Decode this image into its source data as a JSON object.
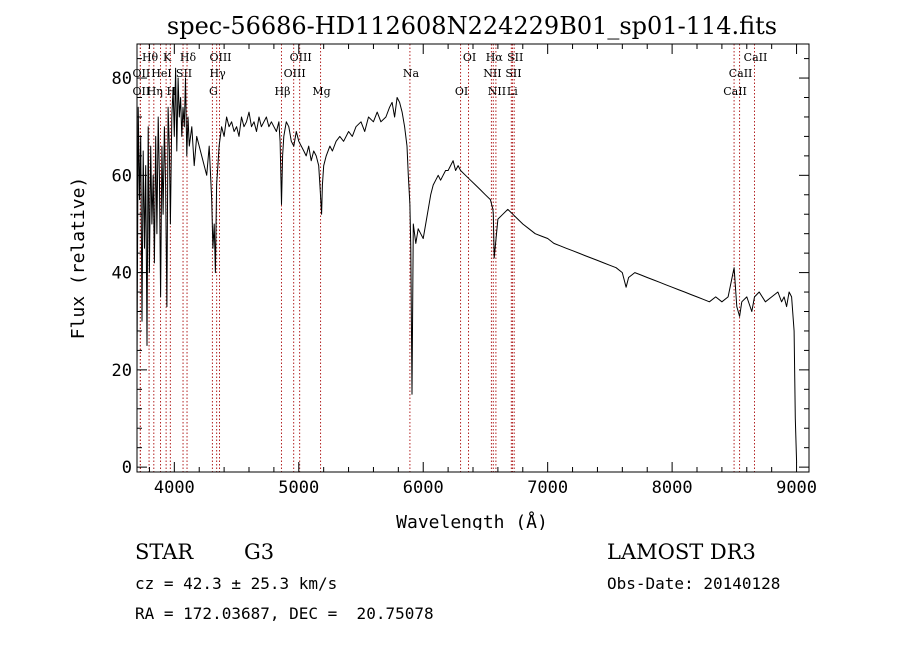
{
  "chart_data": {
    "type": "line",
    "title": "spec-56686-HD112608N224229B01_sp01-114.fits",
    "xlabel": "Wavelength (Å)",
    "ylabel": "Flux (relative)",
    "xlim": [
      3700,
      9100
    ],
    "ylim": [
      -1,
      87
    ],
    "x_ticks": [
      4000,
      5000,
      6000,
      7000,
      8000,
      9000
    ],
    "y_ticks": [
      0,
      20,
      40,
      60,
      80
    ],
    "grid": false,
    "series": [
      {
        "x": [
          3700,
          3710,
          3720,
          3730,
          3740,
          3750,
          3760,
          3770,
          3780,
          3790,
          3800,
          3810,
          3820,
          3830,
          3840,
          3850,
          3860,
          3870,
          3880,
          3890,
          3900,
          3910,
          3920,
          3930,
          3940,
          3950,
          3960,
          3968,
          3980,
          3990,
          4000,
          4010,
          4020,
          4030,
          4040,
          4050,
          4060,
          4070,
          4080,
          4090,
          4100,
          4110,
          4120,
          4140,
          4160,
          4180,
          4200,
          4220,
          4240,
          4260,
          4280,
          4300,
          4310,
          4320,
          4330,
          4340,
          4350,
          4360,
          4380,
          4400,
          4420,
          4440,
          4460,
          4480,
          4500,
          4520,
          4540,
          4560,
          4580,
          4600,
          4620,
          4640,
          4660,
          4680,
          4700,
          4720,
          4740,
          4760,
          4780,
          4800,
          4820,
          4840,
          4850,
          4861,
          4870,
          4880,
          4900,
          4920,
          4940,
          4960,
          4980,
          5000,
          5020,
          5040,
          5060,
          5080,
          5100,
          5120,
          5140,
          5160,
          5170,
          5183,
          5190,
          5200,
          5220,
          5250,
          5270,
          5300,
          5330,
          5360,
          5400,
          5430,
          5460,
          5500,
          5530,
          5560,
          5600,
          5630,
          5660,
          5700,
          5730,
          5750,
          5770,
          5790,
          5810,
          5830,
          5850,
          5870,
          5880,
          5893,
          5900,
          5910,
          5920,
          5940,
          5960,
          5980,
          6000,
          6020,
          6040,
          6060,
          6080,
          6100,
          6120,
          6140,
          6160,
          6180,
          6200,
          6220,
          6240,
          6260,
          6280,
          6300,
          6340,
          6380,
          6420,
          6460,
          6500,
          6540,
          6560,
          6563,
          6570,
          6600,
          6640,
          6680,
          6720,
          6760,
          6800,
          6850,
          6900,
          6950,
          7000,
          7050,
          7100,
          7150,
          7200,
          7250,
          7300,
          7350,
          7400,
          7450,
          7500,
          7550,
          7600,
          7630,
          7650,
          7700,
          7750,
          7800,
          7850,
          7900,
          7950,
          8000,
          8050,
          8100,
          8150,
          8200,
          8250,
          8300,
          8350,
          8400,
          8450,
          8498,
          8520,
          8542,
          8560,
          8600,
          8640,
          8662,
          8700,
          8750,
          8800,
          8850,
          8880,
          8900,
          8920,
          8940,
          8960,
          8980,
          8990,
          9000
        ],
        "y": [
          20,
          74,
          55,
          68,
          30,
          65,
          45,
          62,
          25,
          70,
          40,
          66,
          50,
          60,
          42,
          68,
          48,
          72,
          60,
          35,
          66,
          52,
          70,
          58,
          33,
          74,
          65,
          50,
          72,
          78,
          68,
          82,
          65,
          80,
          72,
          76,
          68,
          74,
          70,
          80,
          64,
          72,
          66,
          70,
          62,
          68,
          66,
          64,
          62,
          60,
          66,
          55,
          45,
          50,
          40,
          58,
          62,
          66,
          70,
          68,
          72,
          70,
          71,
          69,
          70,
          68,
          72,
          70,
          71,
          73,
          70,
          71,
          69,
          72,
          70,
          71,
          72,
          70,
          71,
          70,
          69,
          71,
          67,
          54,
          64,
          68,
          71,
          70,
          67,
          66,
          69,
          67,
          66,
          65,
          64,
          66,
          63,
          65,
          64,
          62,
          58,
          52,
          58,
          62,
          64,
          66,
          65,
          67,
          68,
          67,
          69,
          68,
          70,
          71,
          69,
          72,
          71,
          73,
          71,
          72,
          74,
          75,
          72,
          76,
          75,
          73,
          70,
          66,
          60,
          54,
          45,
          15,
          50,
          46,
          49,
          48,
          47,
          50,
          53,
          56,
          58,
          59,
          60,
          59,
          60,
          61,
          61,
          62,
          63,
          61,
          62,
          61,
          60,
          59,
          58,
          57,
          56,
          55,
          53,
          52,
          43,
          51,
          52,
          53,
          52,
          51,
          50,
          49,
          48,
          47.5,
          47,
          46,
          45.5,
          45,
          44.5,
          44,
          43.5,
          43,
          42.5,
          42,
          41.5,
          41,
          40,
          37,
          39,
          40,
          39.5,
          39,
          38.5,
          38,
          37.5,
          37,
          36.5,
          36,
          35.5,
          35,
          34.5,
          34,
          35,
          34,
          35,
          41,
          33,
          31,
          34,
          35,
          32,
          35,
          36,
          34,
          35,
          36,
          34,
          35,
          33,
          36,
          35,
          28,
          10,
          1
        ]
      }
    ],
    "annotations": [
      {
        "label": "Hθ",
        "x": 3797
      },
      {
        "label": "OII",
        "x": 3727
      },
      {
        "label": "OII",
        "x": 3727
      },
      {
        "label": "HeI",
        "x": 3889
      },
      {
        "label": "Hη",
        "x": 3835
      },
      {
        "label": "K",
        "x": 3934
      },
      {
        "label": "H",
        "x": 3968
      },
      {
        "label": "Hδ",
        "x": 4102
      },
      {
        "label": "SII",
        "x": 4070
      },
      {
        "label": "OIII",
        "x": 4363
      },
      {
        "label": "Hγ",
        "x": 4340
      },
      {
        "label": "G",
        "x": 4306
      },
      {
        "label": "Hβ",
        "x": 4861
      },
      {
        "label": "OIII",
        "x": 5007
      },
      {
        "label": "OIII",
        "x": 4959
      },
      {
        "label": "Mg",
        "x": 5175
      },
      {
        "label": "Na",
        "x": 5893
      },
      {
        "label": "OI",
        "x": 6300
      },
      {
        "label": "OI",
        "x": 6364
      },
      {
        "label": "Hα",
        "x": 6563
      },
      {
        "label": "SII",
        "x": 6717
      },
      {
        "label": "NII",
        "x": 6548
      },
      {
        "label": "Li",
        "x": 6708
      },
      {
        "label": "NII",
        "x": 6584
      },
      {
        "label": "SII",
        "x": 6731
      },
      {
        "label": "CaII",
        "x": 8542
      },
      {
        "label": "CaII",
        "x": 8498
      },
      {
        "label": "CaII",
        "x": 8662
      }
    ]
  },
  "info": {
    "object_class": "STAR",
    "subclass": "G3",
    "survey": "LAMOST DR3",
    "cz": "cz = 42.3 ± 25.3 km/s",
    "obs_date": "Obs-Date: 20140128",
    "coords": "RA = 172.03687, DEC =  20.75078"
  }
}
